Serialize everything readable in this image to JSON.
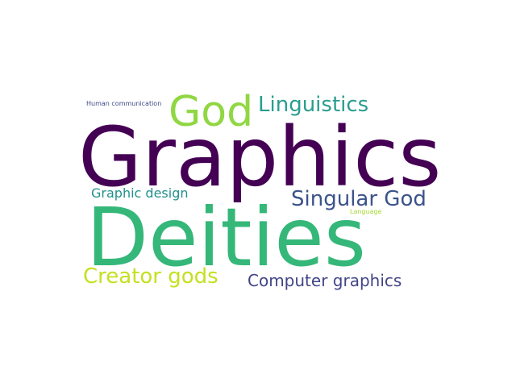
{
  "words": [
    {
      "key": "graphics",
      "text": "Graphics",
      "color": "#440154"
    },
    {
      "key": "deities",
      "text": "Deities",
      "color": "#35b779"
    },
    {
      "key": "god",
      "text": "God",
      "color": "#90d743"
    },
    {
      "key": "linguistics",
      "text": "Linguistics",
      "color": "#2a9d8f"
    },
    {
      "key": "singular_god",
      "text": "Singular God",
      "color": "#3b528b"
    },
    {
      "key": "creator_gods",
      "text": "Creator gods",
      "color": "#c5e021"
    },
    {
      "key": "computer_graphics",
      "text": "Computer graphics",
      "color": "#414487"
    },
    {
      "key": "graphic_design",
      "text": "Graphic design",
      "color": "#21908d"
    },
    {
      "key": "human_communication",
      "text": "Human communication",
      "color": "#3e4a89"
    },
    {
      "key": "language",
      "text": "Language",
      "color": "#a5db36"
    }
  ]
}
